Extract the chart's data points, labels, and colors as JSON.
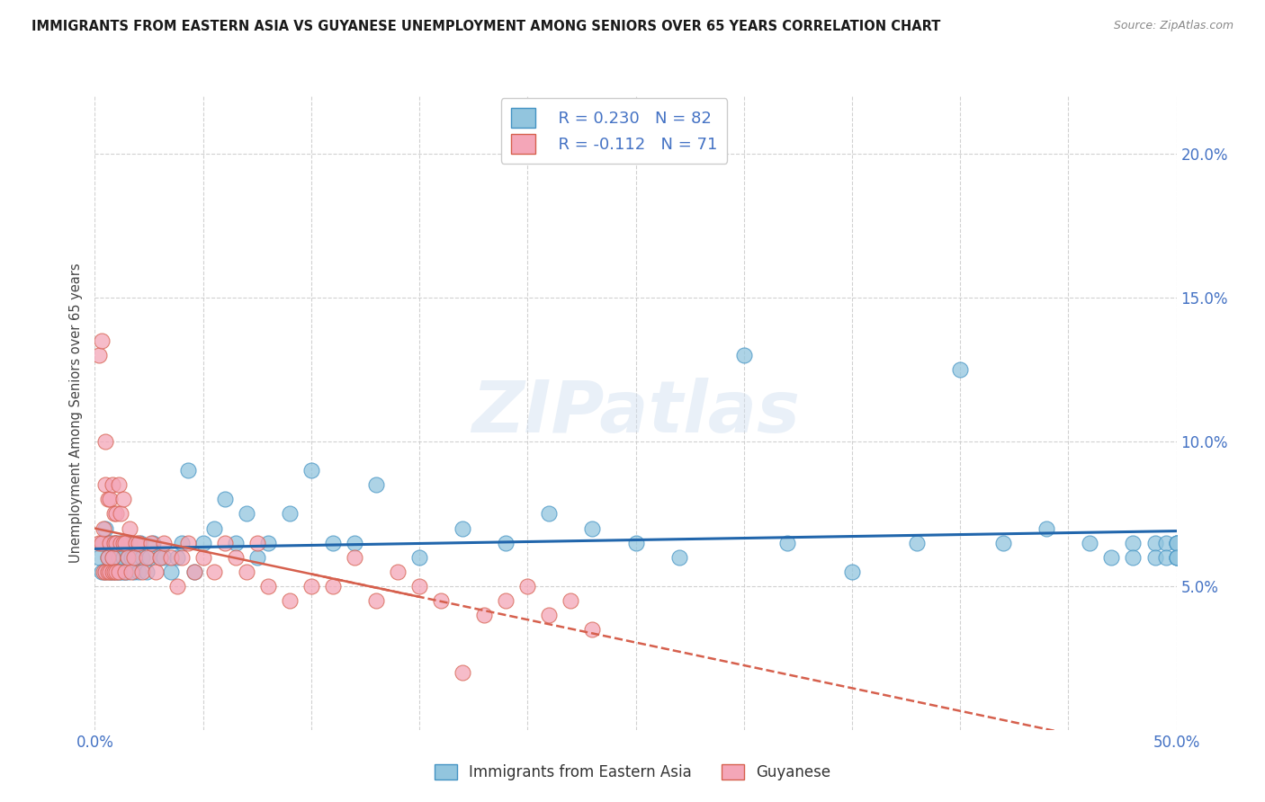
{
  "title": "IMMIGRANTS FROM EASTERN ASIA VS GUYANESE UNEMPLOYMENT AMONG SENIORS OVER 65 YEARS CORRELATION CHART",
  "source": "Source: ZipAtlas.com",
  "ylabel": "Unemployment Among Seniors over 65 years",
  "xlim": [
    0.0,
    0.5
  ],
  "ylim": [
    0.0,
    0.22
  ],
  "yticks": [
    0.05,
    0.1,
    0.15,
    0.2
  ],
  "ytick_labels": [
    "5.0%",
    "10.0%",
    "15.0%",
    "20.0%"
  ],
  "xticks": [
    0.0,
    0.05,
    0.1,
    0.15,
    0.2,
    0.25,
    0.3,
    0.35,
    0.4,
    0.45,
    0.5
  ],
  "blue_R": 0.23,
  "blue_N": 82,
  "pink_R": -0.112,
  "pink_N": 71,
  "blue_color": "#92c5de",
  "pink_color": "#f4a6b8",
  "blue_edge_color": "#4393c3",
  "pink_edge_color": "#d6604d",
  "blue_line_color": "#2166ac",
  "pink_line_color": "#d6604d",
  "legend_label_blue": "Immigrants from Eastern Asia",
  "legend_label_pink": "Guyanese",
  "watermark": "ZIPatlas",
  "blue_scatter_x": [
    0.002,
    0.003,
    0.004,
    0.005,
    0.005,
    0.006,
    0.007,
    0.007,
    0.008,
    0.008,
    0.009,
    0.009,
    0.01,
    0.01,
    0.01,
    0.011,
    0.011,
    0.012,
    0.012,
    0.013,
    0.013,
    0.014,
    0.014,
    0.015,
    0.015,
    0.016,
    0.017,
    0.018,
    0.019,
    0.02,
    0.021,
    0.022,
    0.024,
    0.025,
    0.027,
    0.03,
    0.032,
    0.035,
    0.038,
    0.04,
    0.043,
    0.046,
    0.05,
    0.055,
    0.06,
    0.065,
    0.07,
    0.075,
    0.08,
    0.09,
    0.1,
    0.11,
    0.12,
    0.13,
    0.15,
    0.17,
    0.19,
    0.21,
    0.23,
    0.25,
    0.27,
    0.3,
    0.32,
    0.35,
    0.38,
    0.4,
    0.42,
    0.44,
    0.46,
    0.47,
    0.48,
    0.48,
    0.49,
    0.49,
    0.495,
    0.495,
    0.5,
    0.5,
    0.5,
    0.5,
    0.5,
    0.5
  ],
  "blue_scatter_y": [
    0.06,
    0.055,
    0.065,
    0.07,
    0.055,
    0.06,
    0.055,
    0.065,
    0.06,
    0.055,
    0.065,
    0.06,
    0.055,
    0.06,
    0.065,
    0.06,
    0.055,
    0.065,
    0.055,
    0.06,
    0.055,
    0.065,
    0.055,
    0.06,
    0.055,
    0.065,
    0.06,
    0.055,
    0.06,
    0.055,
    0.065,
    0.06,
    0.055,
    0.06,
    0.065,
    0.06,
    0.06,
    0.055,
    0.06,
    0.065,
    0.09,
    0.055,
    0.065,
    0.07,
    0.08,
    0.065,
    0.075,
    0.06,
    0.065,
    0.075,
    0.09,
    0.065,
    0.065,
    0.085,
    0.06,
    0.07,
    0.065,
    0.075,
    0.07,
    0.065,
    0.06,
    0.13,
    0.065,
    0.055,
    0.065,
    0.125,
    0.065,
    0.07,
    0.065,
    0.06,
    0.065,
    0.06,
    0.065,
    0.06,
    0.065,
    0.06,
    0.065,
    0.06,
    0.065,
    0.06,
    0.065,
    0.06
  ],
  "pink_scatter_x": [
    0.002,
    0.002,
    0.003,
    0.003,
    0.004,
    0.004,
    0.005,
    0.005,
    0.005,
    0.006,
    0.006,
    0.006,
    0.007,
    0.007,
    0.007,
    0.008,
    0.008,
    0.008,
    0.009,
    0.009,
    0.009,
    0.01,
    0.01,
    0.01,
    0.011,
    0.011,
    0.012,
    0.012,
    0.013,
    0.013,
    0.014,
    0.014,
    0.015,
    0.016,
    0.017,
    0.018,
    0.019,
    0.02,
    0.022,
    0.024,
    0.026,
    0.028,
    0.03,
    0.032,
    0.035,
    0.038,
    0.04,
    0.043,
    0.046,
    0.05,
    0.055,
    0.06,
    0.065,
    0.07,
    0.075,
    0.08,
    0.09,
    0.1,
    0.11,
    0.12,
    0.13,
    0.14,
    0.15,
    0.16,
    0.17,
    0.18,
    0.19,
    0.2,
    0.21,
    0.22,
    0.23
  ],
  "pink_scatter_y": [
    0.065,
    0.13,
    0.065,
    0.135,
    0.055,
    0.07,
    0.055,
    0.085,
    0.1,
    0.055,
    0.06,
    0.08,
    0.055,
    0.065,
    0.08,
    0.055,
    0.06,
    0.085,
    0.055,
    0.065,
    0.075,
    0.055,
    0.065,
    0.075,
    0.055,
    0.085,
    0.065,
    0.075,
    0.065,
    0.08,
    0.055,
    0.065,
    0.06,
    0.07,
    0.055,
    0.06,
    0.065,
    0.065,
    0.055,
    0.06,
    0.065,
    0.055,
    0.06,
    0.065,
    0.06,
    0.05,
    0.06,
    0.065,
    0.055,
    0.06,
    0.055,
    0.065,
    0.06,
    0.055,
    0.065,
    0.05,
    0.045,
    0.05,
    0.05,
    0.06,
    0.045,
    0.055,
    0.05,
    0.045,
    0.02,
    0.04,
    0.045,
    0.05,
    0.04,
    0.045,
    0.035
  ],
  "background_color": "#ffffff",
  "grid_color": "#cccccc",
  "title_color": "#1a1a1a",
  "axis_color": "#4472c4"
}
